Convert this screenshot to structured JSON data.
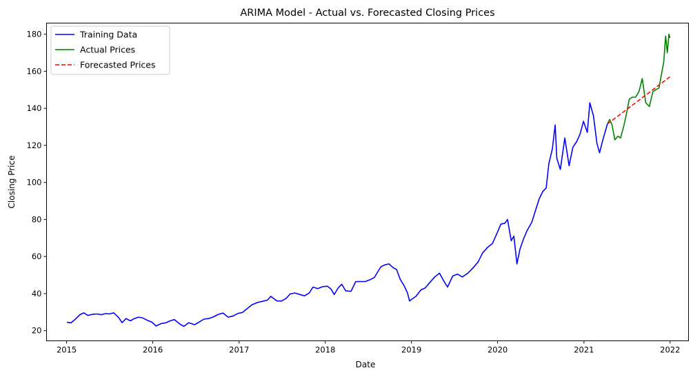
{
  "chart_data": {
    "type": "line",
    "title": "ARIMA Model - Actual vs. Forecasted Closing Prices",
    "xlabel": "Date",
    "ylabel": "Closing Price",
    "xlim": [
      "2014-10-08",
      "2022-03-20"
    ],
    "ylim": [
      14.5,
      186
    ],
    "x_ticks": [
      "2015",
      "2016",
      "2017",
      "2018",
      "2019",
      "2020",
      "2021",
      "2022"
    ],
    "y_ticks": [
      20,
      40,
      60,
      80,
      100,
      120,
      140,
      160,
      180
    ],
    "grid": false,
    "legend_position": "upper-left",
    "series": [
      {
        "name": "Training Data",
        "color": "#0000ff",
        "style": "solid",
        "points": [
          [
            "2015-01-02",
            24.5
          ],
          [
            "2015-01-20",
            24.2
          ],
          [
            "2015-02-10",
            26.5
          ],
          [
            "2015-02-25",
            28.5
          ],
          [
            "2015-03-15",
            29.6
          ],
          [
            "2015-04-01",
            28.2
          ],
          [
            "2015-04-20",
            28.8
          ],
          [
            "2015-05-10",
            29.0
          ],
          [
            "2015-05-28",
            28.6
          ],
          [
            "2015-06-15",
            29.2
          ],
          [
            "2015-07-01",
            29.0
          ],
          [
            "2015-07-20",
            29.6
          ],
          [
            "2015-08-10",
            27.0
          ],
          [
            "2015-08-24",
            24.3
          ],
          [
            "2015-09-10",
            26.5
          ],
          [
            "2015-09-28",
            25.3
          ],
          [
            "2015-10-15",
            26.5
          ],
          [
            "2015-11-02",
            27.3
          ],
          [
            "2015-11-20",
            26.8
          ],
          [
            "2015-12-10",
            25.5
          ],
          [
            "2015-12-28",
            24.6
          ],
          [
            "2016-01-15",
            22.5
          ],
          [
            "2016-02-05",
            23.8
          ],
          [
            "2016-02-25",
            24.2
          ],
          [
            "2016-03-15",
            25.3
          ],
          [
            "2016-04-01",
            26.0
          ],
          [
            "2016-04-25",
            23.5
          ],
          [
            "2016-05-12",
            22.3
          ],
          [
            "2016-06-01",
            24.3
          ],
          [
            "2016-06-27",
            23.2
          ],
          [
            "2016-07-15",
            24.6
          ],
          [
            "2016-08-05",
            26.2
          ],
          [
            "2016-08-25",
            26.5
          ],
          [
            "2016-09-15",
            27.5
          ],
          [
            "2016-10-05",
            28.8
          ],
          [
            "2016-10-25",
            29.5
          ],
          [
            "2016-11-15",
            27.3
          ],
          [
            "2016-12-05",
            27.8
          ],
          [
            "2016-12-28",
            29.3
          ],
          [
            "2017-01-15",
            29.8
          ],
          [
            "2017-02-05",
            32.0
          ],
          [
            "2017-02-25",
            34.0
          ],
          [
            "2017-03-20",
            35.2
          ],
          [
            "2017-04-10",
            35.8
          ],
          [
            "2017-05-01",
            36.5
          ],
          [
            "2017-05-15",
            38.5
          ],
          [
            "2017-06-10",
            36.0
          ],
          [
            "2017-06-30",
            36.0
          ],
          [
            "2017-07-20",
            37.5
          ],
          [
            "2017-08-05",
            39.8
          ],
          [
            "2017-08-25",
            40.3
          ],
          [
            "2017-09-15",
            39.5
          ],
          [
            "2017-10-05",
            38.8
          ],
          [
            "2017-10-25",
            40.3
          ],
          [
            "2017-11-10",
            43.5
          ],
          [
            "2017-11-30",
            42.7
          ],
          [
            "2017-12-20",
            43.7
          ],
          [
            "2018-01-10",
            44.0
          ],
          [
            "2018-01-25",
            42.5
          ],
          [
            "2018-02-08",
            39.5
          ],
          [
            "2018-02-25",
            43.2
          ],
          [
            "2018-03-12",
            45.0
          ],
          [
            "2018-03-28",
            41.5
          ],
          [
            "2018-04-20",
            41.2
          ],
          [
            "2018-05-10",
            46.5
          ],
          [
            "2018-05-30",
            46.5
          ],
          [
            "2018-06-20",
            46.5
          ],
          [
            "2018-07-10",
            47.5
          ],
          [
            "2018-07-28",
            48.7
          ],
          [
            "2018-08-10",
            51.5
          ],
          [
            "2018-08-25",
            54.5
          ],
          [
            "2018-09-10",
            55.5
          ],
          [
            "2018-09-28",
            56.0
          ],
          [
            "2018-10-15",
            54.0
          ],
          [
            "2018-10-30",
            53.0
          ],
          [
            "2018-11-15",
            47.5
          ],
          [
            "2018-11-30",
            44.5
          ],
          [
            "2018-12-15",
            40.5
          ],
          [
            "2018-12-24",
            36.0
          ],
          [
            "2019-01-03",
            37.0
          ],
          [
            "2019-01-20",
            38.5
          ],
          [
            "2019-02-10",
            42.0
          ],
          [
            "2019-02-28",
            43.0
          ],
          [
            "2019-03-20",
            46.0
          ],
          [
            "2019-04-10",
            49.0
          ],
          [
            "2019-04-30",
            51.0
          ],
          [
            "2019-05-15",
            47.5
          ],
          [
            "2019-06-03",
            43.5
          ],
          [
            "2019-06-25",
            49.5
          ],
          [
            "2019-07-15",
            50.5
          ],
          [
            "2019-08-05",
            49.0
          ],
          [
            "2019-08-28",
            51.0
          ],
          [
            "2019-09-20",
            54.0
          ],
          [
            "2019-10-10",
            57.0
          ],
          [
            "2019-10-30",
            62.0
          ],
          [
            "2019-11-20",
            65.0
          ],
          [
            "2019-12-10",
            67.0
          ],
          [
            "2019-12-31",
            73.0
          ],
          [
            "2020-01-15",
            77.5
          ],
          [
            "2020-02-01",
            78.0
          ],
          [
            "2020-02-12",
            80.0
          ],
          [
            "2020-02-28",
            68.5
          ],
          [
            "2020-03-10",
            71.0
          ],
          [
            "2020-03-23",
            56.0
          ],
          [
            "2020-04-05",
            64.0
          ],
          [
            "2020-04-20",
            69.5
          ],
          [
            "2020-05-05",
            74.0
          ],
          [
            "2020-05-25",
            78.5
          ],
          [
            "2020-06-10",
            85.0
          ],
          [
            "2020-06-25",
            91.0
          ],
          [
            "2020-07-10",
            95.0
          ],
          [
            "2020-07-25",
            97.0
          ],
          [
            "2020-08-05",
            110.0
          ],
          [
            "2020-08-20",
            118.0
          ],
          [
            "2020-09-01",
            131.0
          ],
          [
            "2020-09-08",
            113.0
          ],
          [
            "2020-09-23",
            107.0
          ],
          [
            "2020-10-12",
            124.0
          ],
          [
            "2020-10-30",
            109.0
          ],
          [
            "2020-11-15",
            119.0
          ],
          [
            "2020-12-01",
            122.0
          ],
          [
            "2020-12-15",
            126.0
          ],
          [
            "2020-12-30",
            133.0
          ],
          [
            "2021-01-15",
            127.0
          ],
          [
            "2021-01-26",
            143.0
          ],
          [
            "2021-02-10",
            136.0
          ],
          [
            "2021-02-25",
            121.0
          ],
          [
            "2021-03-08",
            116.0
          ],
          [
            "2021-03-22",
            123.0
          ],
          [
            "2021-04-10",
            131.5
          ]
        ]
      },
      {
        "name": "Actual Prices",
        "color": "#008000",
        "style": "solid",
        "points": [
          [
            "2021-04-10",
            131.5
          ],
          [
            "2021-04-20",
            134.0
          ],
          [
            "2021-04-30",
            131.0
          ],
          [
            "2021-05-12",
            123.0
          ],
          [
            "2021-05-25",
            125.0
          ],
          [
            "2021-06-05",
            124.0
          ],
          [
            "2021-06-18",
            130.0
          ],
          [
            "2021-07-01",
            137.5
          ],
          [
            "2021-07-12",
            145.0
          ],
          [
            "2021-07-25",
            146.0
          ],
          [
            "2021-08-08",
            146.0
          ],
          [
            "2021-08-22",
            149.0
          ],
          [
            "2021-09-05",
            156.0
          ],
          [
            "2021-09-20",
            143.0
          ],
          [
            "2021-10-05",
            141.0
          ],
          [
            "2021-10-20",
            149.0
          ],
          [
            "2021-11-01",
            150.0
          ],
          [
            "2021-11-15",
            151.0
          ],
          [
            "2021-11-25",
            158.0
          ],
          [
            "2021-12-05",
            165.0
          ],
          [
            "2021-12-13",
            179.0
          ],
          [
            "2021-12-20",
            170.0
          ],
          [
            "2021-12-27",
            180.0
          ],
          [
            "2021-12-31",
            178.0
          ]
        ]
      },
      {
        "name": "Forecasted Prices",
        "color": "#ff0000",
        "style": "dashed",
        "points": [
          [
            "2021-04-10",
            131.5
          ],
          [
            "2021-12-31",
            157.0
          ]
        ]
      }
    ]
  }
}
